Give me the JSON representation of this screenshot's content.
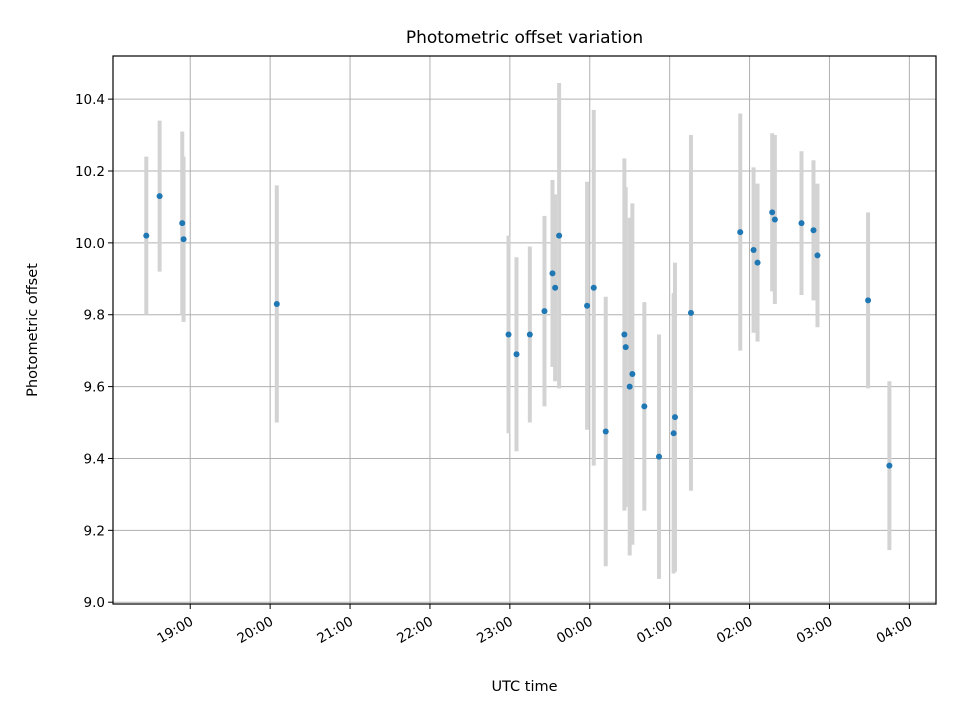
{
  "chart_data": {
    "type": "scatter",
    "title": "Photometric offset variation",
    "xlabel": "UTC time",
    "ylabel": "Photometric offset",
    "x_is_time": true,
    "xlim": [
      "18:02",
      "04:20"
    ],
    "ylim": [
      8.995,
      10.52
    ],
    "x_ticks": [
      "19:00",
      "20:00",
      "21:00",
      "22:00",
      "23:00",
      "00:00",
      "01:00",
      "02:00",
      "03:00",
      "04:00"
    ],
    "y_ticks": [
      9.0,
      9.2,
      9.4,
      9.6,
      9.8,
      10.0,
      10.2,
      10.4
    ],
    "y_tick_labels": [
      "9.0",
      "9.2",
      "9.4",
      "9.6",
      "9.8",
      "10.0",
      "10.2",
      "10.4"
    ],
    "grid": true,
    "point_color": "#1f77b4",
    "errorbar_color": "#d3d3d3",
    "points": [
      {
        "time": "18:27",
        "y": 10.02,
        "err": 0.22
      },
      {
        "time": "18:37",
        "y": 10.13,
        "err": 0.21
      },
      {
        "time": "18:54",
        "y": 10.055,
        "err": 0.255
      },
      {
        "time": "18:55",
        "y": 10.01,
        "err": 0.23
      },
      {
        "time": "20:05",
        "y": 9.83,
        "err": 0.33
      },
      {
        "time": "22:59",
        "y": 9.745,
        "err": 0.275
      },
      {
        "time": "23:05",
        "y": 9.69,
        "err": 0.27
      },
      {
        "time": "23:15",
        "y": 9.745,
        "err": 0.245
      },
      {
        "time": "23:26",
        "y": 9.81,
        "err": 0.265
      },
      {
        "time": "23:32",
        "y": 9.915,
        "err": 0.26
      },
      {
        "time": "23:34",
        "y": 9.875,
        "err": 0.26
      },
      {
        "time": "23:37",
        "y": 10.02,
        "err": 0.425
      },
      {
        "time": "23:58",
        "y": 9.825,
        "err": 0.345
      },
      {
        "time": "00:03",
        "y": 9.875,
        "err": 0.495
      },
      {
        "time": "00:12",
        "y": 9.475,
        "err": 0.375
      },
      {
        "time": "00:26",
        "y": 9.745,
        "err": 0.49
      },
      {
        "time": "00:27",
        "y": 9.71,
        "err": 0.445
      },
      {
        "time": "00:30",
        "y": 9.6,
        "err": 0.47
      },
      {
        "time": "00:32",
        "y": 9.635,
        "err": 0.475
      },
      {
        "time": "00:41",
        "y": 9.545,
        "err": 0.29
      },
      {
        "time": "00:52",
        "y": 9.405,
        "err": 0.34
      },
      {
        "time": "01:03",
        "y": 9.47,
        "err": 0.39
      },
      {
        "time": "01:04",
        "y": 9.515,
        "err": 0.43
      },
      {
        "time": "01:16",
        "y": 9.805,
        "err": 0.495
      },
      {
        "time": "01:53",
        "y": 10.03,
        "err": 0.33
      },
      {
        "time": "02:03",
        "y": 9.98,
        "err": 0.23
      },
      {
        "time": "02:06",
        "y": 9.945,
        "err": 0.22
      },
      {
        "time": "02:17",
        "y": 10.085,
        "err": 0.22
      },
      {
        "time": "02:19",
        "y": 10.065,
        "err": 0.235
      },
      {
        "time": "02:39",
        "y": 10.055,
        "err": 0.2
      },
      {
        "time": "02:48",
        "y": 10.035,
        "err": 0.195
      },
      {
        "time": "02:51",
        "y": 9.965,
        "err": 0.2
      },
      {
        "time": "03:29",
        "y": 9.84,
        "err": 0.245
      },
      {
        "time": "03:45",
        "y": 9.38,
        "err": 0.235
      }
    ]
  }
}
